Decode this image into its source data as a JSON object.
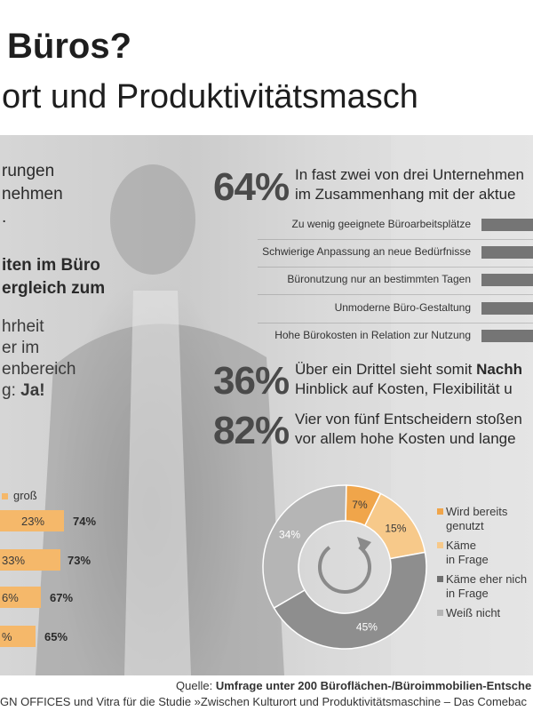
{
  "header": {
    "title": "Büros?",
    "subtitle": "ort und Produktivitätsmasch"
  },
  "left_panel": {
    "lines_a": [
      "rungen",
      "nehmen",
      "."
    ],
    "lines_b": [
      "iten im Büro",
      "ergleich zum"
    ],
    "lines_c": [
      "hrheit",
      "er im",
      "enbereich"
    ],
    "answer_prefix": "g: ",
    "answer_bold": "Ja!"
  },
  "left_table": {
    "header_label": "groß",
    "rows": [
      {
        "bar_value": "23%",
        "total": "74%",
        "fill": 0.62
      },
      {
        "bar_value": "33%",
        "total": "73%",
        "fill": 0.6
      },
      {
        "bar_value": "6%",
        "total": "67%",
        "fill": 0.55
      },
      {
        "bar_value": "%",
        "total": "65%",
        "fill": 0.53
      }
    ]
  },
  "stats": [
    {
      "number": "64%",
      "line1": "In fast zwei von drei Unternehmen",
      "line2": "im Zusammenhang mit der aktue"
    },
    {
      "number": "36%",
      "line1_pre": "Über ein Drittel sieht somit ",
      "line1_bold": "Nachh",
      "line2": "Hinblick auf Kosten, Flexibilität u"
    },
    {
      "number": "82%",
      "line1": "Vier von fünf Entscheidern stoßen",
      "line2": "vor allem hohe Kosten und lange"
    }
  ],
  "reasons": [
    "Zu wenig geeignete Büroarbeitsplätze",
    "Schwierige Anpassung an neue Bedürfnisse",
    "Büronutzung nur an bestimmten Tagen",
    "Unmoderne Büro-Gestaltung",
    "Hohe Bürokosten in Relation zur Nutzung"
  ],
  "chart_data": {
    "type": "pie",
    "style": "donut",
    "series": [
      {
        "name": "Wird bereits genutzt",
        "value": 7,
        "color": "#f0a54a"
      },
      {
        "name": "Käme in Frage",
        "value": 15,
        "color": "#f7c98a"
      },
      {
        "name": "Käme eher nicht in Frage",
        "value": 45,
        "color": "#8e8e8e"
      },
      {
        "name": "Weiß nicht",
        "value": 34,
        "color": "#b5b5b5"
      }
    ],
    "labels": [
      "7%",
      "15%",
      "45%",
      "34%"
    ],
    "legend": [
      {
        "line1": "Wird bereits",
        "line2": "genutzt",
        "color": "#f0a54a"
      },
      {
        "line1": "Käme",
        "line2": "in Frage",
        "color": "#f7c98a"
      },
      {
        "line1": "Käme eher nich",
        "line2": "in Frage",
        "color": "#6f6f6f"
      },
      {
        "line1": "Weiß nicht",
        "line2": "",
        "color": "#b5b5b5"
      }
    ],
    "legend_position": "right"
  },
  "source": {
    "prefix": "Quelle: ",
    "bold": "Umfrage unter 200 Büroflächen-/Büroimmobilien-Entsche",
    "line2": "GN OFFICES und Vitra für die Studie »Zwischen Kulturort und Produktivitätsmaschine – Das Comebac"
  }
}
